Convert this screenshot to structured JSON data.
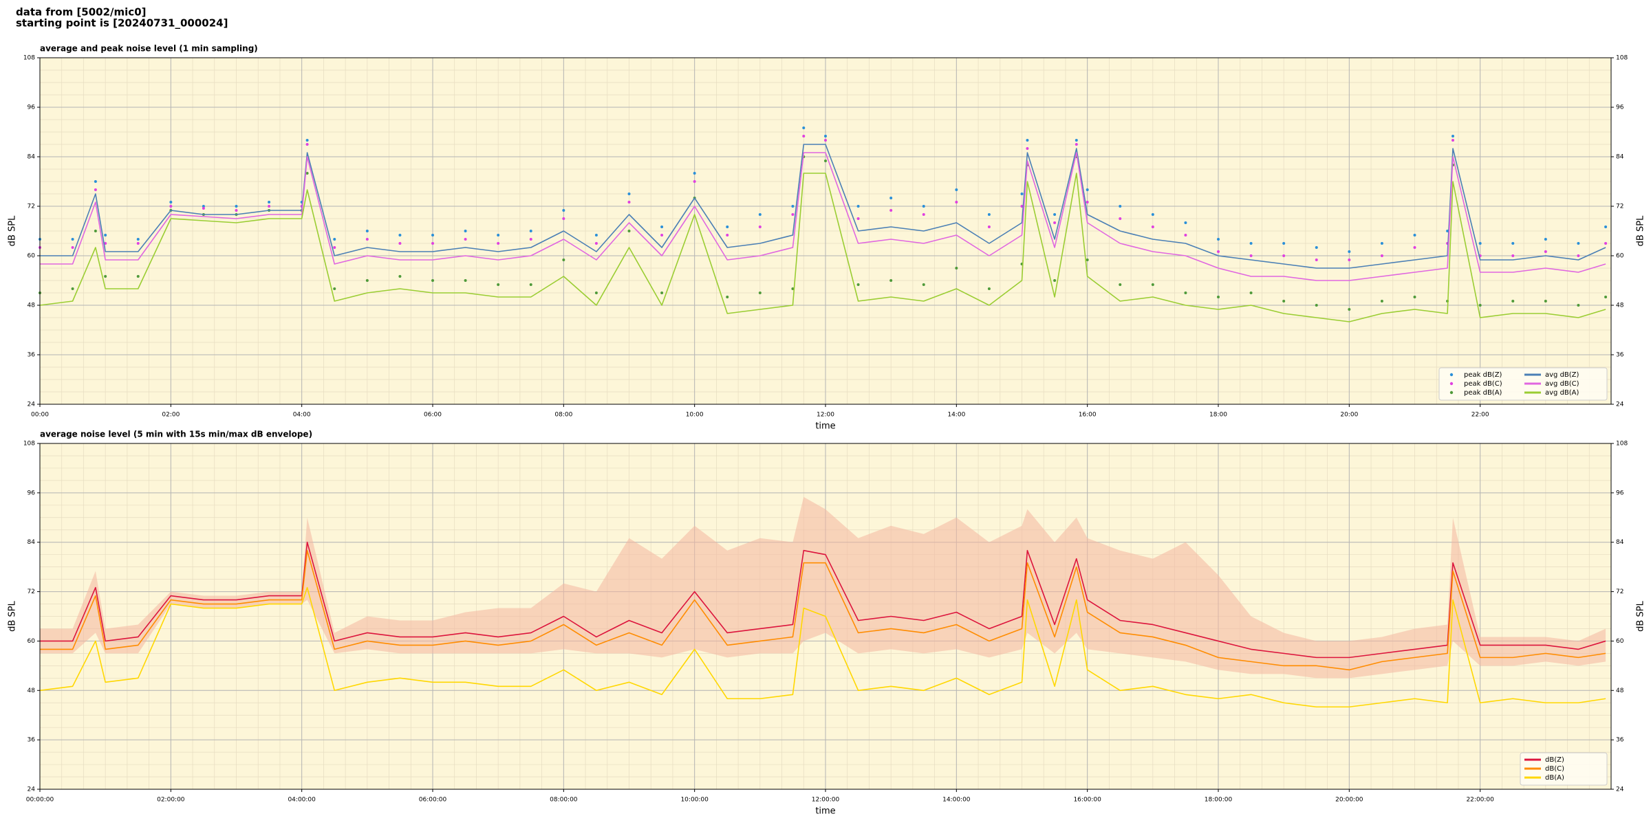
{
  "header": {
    "lines": [
      "data from [5002/mic0]",
      "starting point is [20240731_000024]"
    ]
  },
  "chart_data": [
    {
      "type": "line",
      "title": "average and peak noise level (1 min sampling)",
      "xlabel": "time",
      "ylabel": "dB SPL",
      "x": [
        "00:00",
        "00:30",
        "00:51",
        "01:00",
        "01:30",
        "02:00",
        "02:30",
        "03:00",
        "03:30",
        "04:00",
        "04:05",
        "04:30",
        "05:00",
        "05:30",
        "06:00",
        "06:30",
        "07:00",
        "07:30",
        "08:00",
        "08:30",
        "09:00",
        "09:30",
        "10:00",
        "10:30",
        "11:00",
        "11:30",
        "11:40",
        "12:00",
        "12:30",
        "13:00",
        "13:30",
        "14:00",
        "14:30",
        "15:00",
        "15:05",
        "15:30",
        "15:50",
        "16:00",
        "16:30",
        "17:00",
        "17:30",
        "18:00",
        "18:30",
        "19:00",
        "19:30",
        "20:00",
        "20:30",
        "21:00",
        "21:30",
        "21:35",
        "22:00",
        "22:30",
        "23:00",
        "23:30",
        "23:55"
      ],
      "xlim": [
        "00:00",
        "24:00"
      ],
      "xticks": [
        "00:00",
        "02:00",
        "04:00",
        "06:00",
        "08:00",
        "10:00",
        "12:00",
        "14:00",
        "16:00",
        "18:00",
        "20:00",
        "22:00"
      ],
      "ylim": [
        24,
        108
      ],
      "yticks": [
        24,
        36,
        48,
        60,
        72,
        84,
        96,
        108
      ],
      "grid": true,
      "minor_grid": true,
      "background": "#fdf6d8",
      "legend": "lower right",
      "legend_columns": 2,
      "series": [
        {
          "name": "peak dB(Z)",
          "color": "#2a8fd8",
          "style": "points",
          "values": [
            64,
            64,
            78,
            65,
            64,
            73,
            72,
            72,
            73,
            73,
            88,
            64,
            66,
            65,
            65,
            66,
            65,
            66,
            71,
            65,
            75,
            67,
            80,
            67,
            70,
            72,
            91,
            89,
            72,
            74,
            72,
            76,
            70,
            75,
            88,
            70,
            88,
            76,
            72,
            70,
            68,
            64,
            63,
            63,
            62,
            61,
            63,
            65,
            66,
            89,
            63,
            63,
            64,
            63,
            67
          ]
        },
        {
          "name": "peak dB(C)",
          "color": "#e040e0",
          "style": "points",
          "values": [
            62,
            62,
            76,
            63,
            63,
            72,
            71.5,
            71,
            72,
            72,
            87,
            62,
            64,
            63,
            63,
            64,
            63,
            64,
            69,
            63,
            73,
            65,
            78,
            65,
            67,
            70,
            89,
            88,
            69,
            71,
            70,
            73,
            67,
            72,
            86,
            68,
            87,
            73,
            69,
            67,
            65,
            61,
            60,
            60,
            59,
            59,
            60,
            62,
            63,
            88,
            60,
            60,
            61,
            60,
            63
          ]
        },
        {
          "name": "peak dB(A)",
          "color": "#4f9a3a",
          "style": "points",
          "values": [
            51,
            52,
            66,
            55,
            55,
            71,
            70,
            70,
            71,
            71,
            80,
            52,
            54,
            55,
            54,
            54,
            53,
            53,
            59,
            51,
            66,
            51,
            74,
            50,
            51,
            52,
            84,
            83,
            53,
            54,
            53,
            57,
            52,
            58,
            82,
            54,
            84,
            59,
            53,
            53,
            51,
            50,
            51,
            49,
            48,
            47,
            49,
            50,
            49,
            82,
            48,
            49,
            49,
            48,
            50
          ]
        },
        {
          "name": "avg dB(Z)",
          "color": "#4a7fb5",
          "style": "line",
          "values": [
            60,
            60,
            75,
            61,
            61,
            71,
            70,
            70,
            71,
            71,
            85,
            60,
            62,
            61,
            61,
            62,
            61,
            62,
            66,
            61,
            70,
            62,
            74,
            62,
            63,
            65,
            87,
            87,
            66,
            67,
            66,
            68,
            63,
            68,
            85,
            64,
            86,
            70,
            66,
            64,
            63,
            60,
            59,
            58,
            57,
            57,
            58,
            59,
            60,
            86,
            59,
            59,
            60,
            59,
            62
          ]
        },
        {
          "name": "avg dB(C)",
          "color": "#e066e0",
          "style": "line",
          "values": [
            58,
            58,
            73,
            59,
            59,
            70,
            69.5,
            69,
            70,
            70,
            84,
            58,
            60,
            59,
            59,
            60,
            59,
            60,
            64,
            59,
            68,
            60,
            72,
            59,
            60,
            62,
            85,
            85,
            63,
            64,
            63,
            65,
            60,
            65,
            83,
            62,
            85,
            68,
            63,
            61,
            60,
            57,
            55,
            55,
            54,
            54,
            55,
            56,
            57,
            84,
            56,
            56,
            57,
            56,
            58
          ]
        },
        {
          "name": "avg dB(A)",
          "color": "#9acd32",
          "style": "line",
          "values": [
            48,
            49,
            62,
            52,
            52,
            69,
            68.5,
            68,
            69,
            69,
            76,
            49,
            51,
            52,
            51,
            51,
            50,
            50,
            55,
            48,
            62,
            48,
            70,
            46,
            47,
            48,
            80,
            80,
            49,
            50,
            49,
            52,
            48,
            54,
            78,
            50,
            80,
            55,
            49,
            50,
            48,
            47,
            48,
            46,
            45,
            44,
            46,
            47,
            46,
            78,
            45,
            46,
            46,
            45,
            47
          ]
        }
      ]
    },
    {
      "type": "line",
      "title": "average noise level (5 min with 15s min/max dB envelope)",
      "xlabel": "time",
      "ylabel": "dB SPL",
      "x": [
        "00:00",
        "00:30",
        "00:51",
        "01:00",
        "01:30",
        "02:00",
        "02:30",
        "03:00",
        "03:30",
        "04:00",
        "04:05",
        "04:30",
        "05:00",
        "05:30",
        "06:00",
        "06:30",
        "07:00",
        "07:30",
        "08:00",
        "08:30",
        "09:00",
        "09:30",
        "10:00",
        "10:30",
        "11:00",
        "11:30",
        "11:40",
        "12:00",
        "12:30",
        "13:00",
        "13:30",
        "14:00",
        "14:30",
        "15:00",
        "15:05",
        "15:30",
        "15:50",
        "16:00",
        "16:30",
        "17:00",
        "17:30",
        "18:00",
        "18:30",
        "19:00",
        "19:30",
        "20:00",
        "20:30",
        "21:00",
        "21:30",
        "21:35",
        "22:00",
        "22:30",
        "23:00",
        "23:30",
        "23:55"
      ],
      "xlim": [
        "00:00",
        "24:00"
      ],
      "xticks": [
        {
          "value": "00:00",
          "label": "00:00:00"
        },
        {
          "value": "02:00",
          "label": "02:00:00"
        },
        {
          "value": "04:00",
          "label": "04:00:00"
        },
        {
          "value": "06:00",
          "label": "06:00:00"
        },
        {
          "value": "08:00",
          "label": "08:00:00"
        },
        {
          "value": "10:00",
          "label": "10:00:00"
        },
        {
          "value": "12:00",
          "label": "12:00:00"
        },
        {
          "value": "14:00",
          "label": "14:00:00"
        },
        {
          "value": "16:00",
          "label": "16:00:00"
        },
        {
          "value": "18:00",
          "label": "18:00:00"
        },
        {
          "value": "20:00",
          "label": "20:00:00"
        },
        {
          "value": "22:00",
          "label": "22:00:00"
        }
      ],
      "ylim": [
        24,
        108
      ],
      "yticks": [
        24,
        36,
        48,
        60,
        72,
        84,
        96,
        108
      ],
      "grid": true,
      "minor_grid": true,
      "background": "#fdf6d8",
      "legend": "lower right",
      "legend_columns": 1,
      "envelope": {
        "color": "#f4b7a0",
        "max": [
          63,
          63,
          77,
          63,
          64,
          72,
          71,
          71,
          72,
          72,
          90,
          62,
          66,
          65,
          65,
          67,
          68,
          68,
          74,
          72,
          85,
          80,
          88,
          82,
          85,
          84,
          95,
          92,
          85,
          88,
          86,
          90,
          84,
          88,
          92,
          84,
          90,
          85,
          82,
          80,
          84,
          76,
          66,
          62,
          60,
          60,
          61,
          63,
          64,
          90,
          61,
          61,
          61,
          60,
          63
        ],
        "min": [
          57,
          57,
          62,
          57,
          57,
          69,
          68,
          68,
          69,
          69,
          70,
          57,
          58,
          57,
          57,
          57,
          57,
          57,
          58,
          57,
          57,
          56,
          58,
          56,
          57,
          57,
          60,
          62,
          57,
          58,
          57,
          58,
          56,
          58,
          62,
          57,
          62,
          58,
          57,
          56,
          55,
          53,
          52,
          52,
          51,
          51,
          52,
          53,
          54,
          60,
          54,
          54,
          55,
          54,
          55
        ]
      },
      "series": [
        {
          "name": "dB(Z)",
          "color": "#dc143c",
          "style": "line",
          "values": [
            60,
            60,
            73,
            60,
            61,
            71,
            70,
            70,
            71,
            71,
            84,
            60,
            62,
            61,
            61,
            62,
            61,
            62,
            66,
            61,
            65,
            62,
            72,
            62,
            63,
            64,
            82,
            81,
            65,
            66,
            65,
            67,
            63,
            66,
            82,
            64,
            80,
            70,
            65,
            64,
            62,
            60,
            58,
            57,
            56,
            56,
            57,
            58,
            59,
            79,
            59,
            59,
            59,
            58,
            60
          ]
        },
        {
          "name": "dB(C)",
          "color": "#ff8c00",
          "style": "line",
          "values": [
            58,
            58,
            71,
            58,
            59,
            70,
            69,
            69,
            70,
            70,
            82,
            58,
            60,
            59,
            59,
            60,
            59,
            60,
            64,
            59,
            62,
            59,
            70,
            59,
            60,
            61,
            79,
            79,
            62,
            63,
            62,
            64,
            60,
            63,
            79,
            61,
            78,
            67,
            62,
            61,
            59,
            56,
            55,
            54,
            54,
            53,
            55,
            56,
            57,
            77,
            56,
            56,
            57,
            56,
            57
          ]
        },
        {
          "name": "dB(A)",
          "color": "#ffd700",
          "style": "line",
          "values": [
            48,
            49,
            60,
            50,
            51,
            69,
            68,
            68,
            69,
            69,
            73,
            48,
            50,
            51,
            50,
            50,
            49,
            49,
            53,
            48,
            50,
            47,
            58,
            46,
            46,
            47,
            68,
            66,
            48,
            49,
            48,
            51,
            47,
            50,
            70,
            49,
            70,
            53,
            48,
            49,
            47,
            46,
            47,
            45,
            44,
            44,
            45,
            46,
            45,
            70,
            45,
            46,
            45,
            45,
            46
          ]
        }
      ]
    }
  ]
}
